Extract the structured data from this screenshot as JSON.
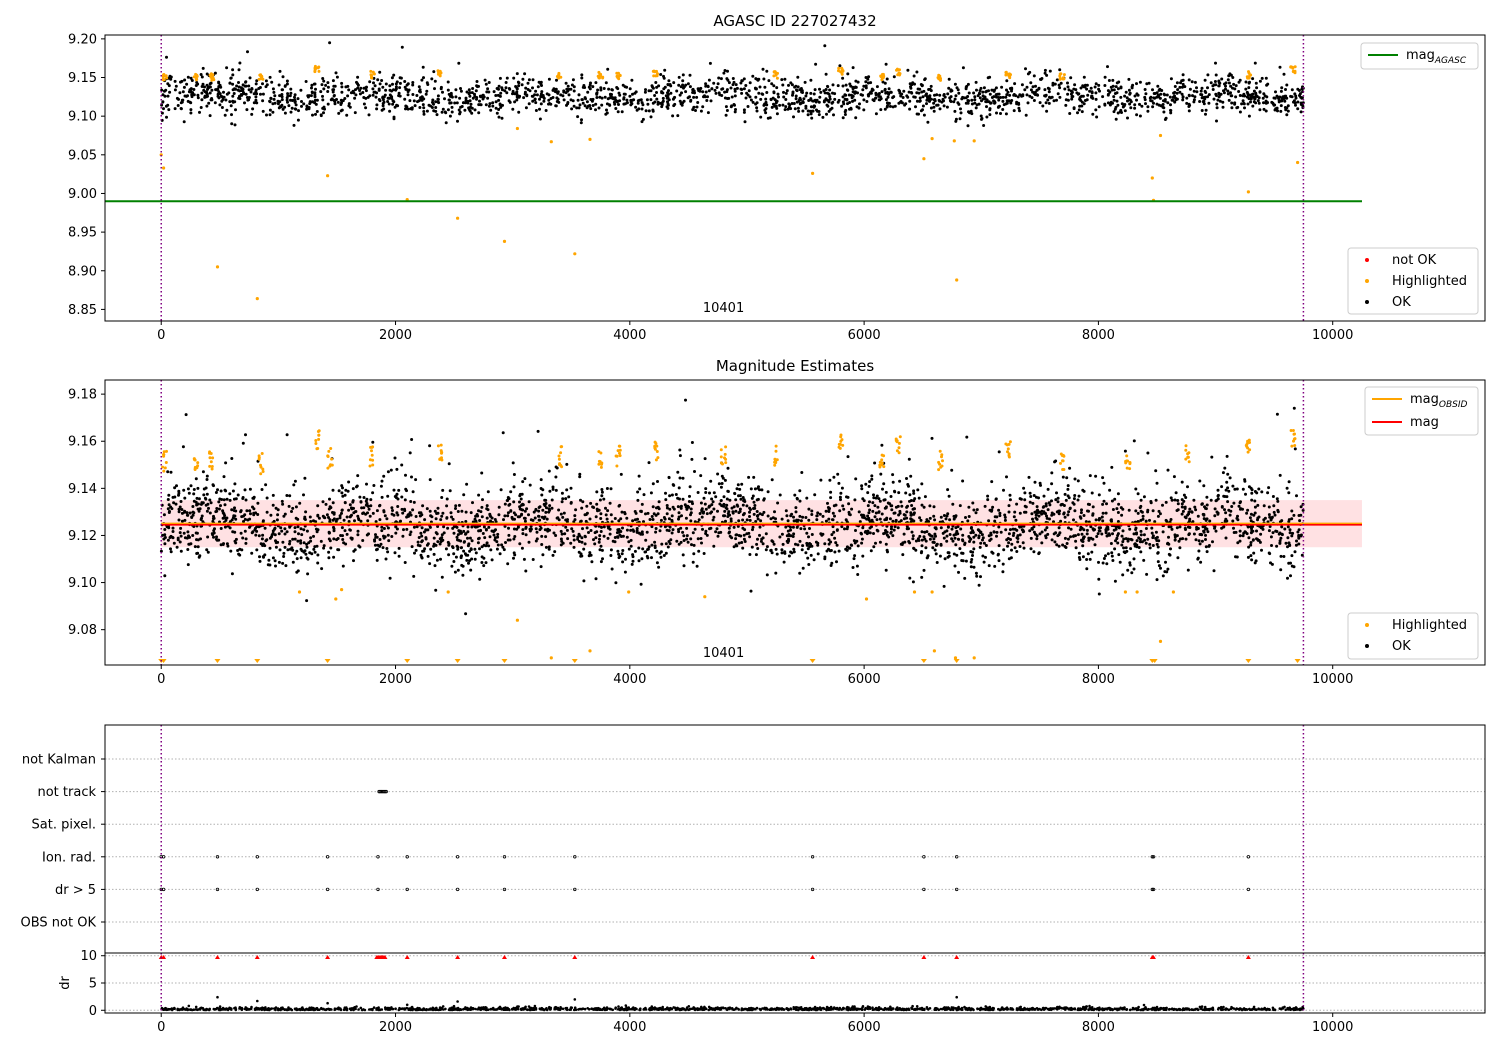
{
  "chart_data": [
    {
      "type": "scatter",
      "title": "AGASC ID 227027432",
      "xlim": [
        -480,
        11300
      ],
      "ylim": [
        8.835,
        9.205
      ],
      "xticks": [
        0,
        2000,
        4000,
        6000,
        8000,
        10000
      ],
      "xtick_labels": [
        "0",
        "2000",
        "4000",
        "6000",
        "8000",
        "10000"
      ],
      "yticks": [
        8.85,
        8.9,
        8.95,
        9.0,
        9.05,
        9.1,
        9.15,
        9.2
      ],
      "ytick_labels": [
        "8.85",
        "8.90",
        "8.95",
        "9.00",
        "9.05",
        "9.10",
        "9.15",
        "9.20"
      ],
      "annotation": "10401",
      "annotation_x": 4800,
      "obsid_bounds": [
        0,
        9750
      ],
      "ok_band": {
        "center": 9.125,
        "spread": 0.012,
        "count": 2200,
        "x": [
          0,
          9750
        ]
      },
      "lines": [
        {
          "name": "mag_AGASC",
          "label_main": "mag",
          "label_sub": "AGASC",
          "y": 8.99,
          "x": [
            -480,
            10250
          ],
          "color": "#008000"
        }
      ],
      "highlighted_points": [
        {
          "x": 0,
          "y": 9.05
        },
        {
          "x": 20,
          "y": 9.033
        },
        {
          "x": 480,
          "y": 8.905
        },
        {
          "x": 820,
          "y": 8.864
        },
        {
          "x": 1420,
          "y": 9.023
        },
        {
          "x": 2100,
          "y": 8.992
        },
        {
          "x": 2530,
          "y": 8.968
        },
        {
          "x": 2930,
          "y": 8.938
        },
        {
          "x": 3040,
          "y": 9.084
        },
        {
          "x": 3330,
          "y": 9.067
        },
        {
          "x": 3530,
          "y": 8.922
        },
        {
          "x": 3660,
          "y": 9.07
        },
        {
          "x": 5560,
          "y": 9.026
        },
        {
          "x": 6510,
          "y": 9.045
        },
        {
          "x": 6580,
          "y": 9.071
        },
        {
          "x": 6770,
          "y": 9.068
        },
        {
          "x": 6790,
          "y": 8.888
        },
        {
          "x": 6940,
          "y": 9.068
        },
        {
          "x": 8460,
          "y": 9.02
        },
        {
          "x": 8470,
          "y": 8.991
        },
        {
          "x": 8530,
          "y": 9.075
        },
        {
          "x": 9280,
          "y": 9.002
        },
        {
          "x": 9700,
          "y": 9.04
        }
      ],
      "highlight_clusters": [
        {
          "x": 30,
          "y": 9.155
        },
        {
          "x": 300,
          "y": 9.154
        },
        {
          "x": 430,
          "y": 9.155
        },
        {
          "x": 850,
          "y": 9.154
        },
        {
          "x": 1330,
          "y": 9.165
        },
        {
          "x": 1800,
          "y": 9.158
        },
        {
          "x": 2380,
          "y": 9.16
        },
        {
          "x": 3400,
          "y": 9.156
        },
        {
          "x": 3750,
          "y": 9.157
        },
        {
          "x": 3900,
          "y": 9.157
        },
        {
          "x": 4220,
          "y": 9.16
        },
        {
          "x": 5250,
          "y": 9.158
        },
        {
          "x": 5800,
          "y": 9.163
        },
        {
          "x": 6150,
          "y": 9.155
        },
        {
          "x": 6290,
          "y": 9.162
        },
        {
          "x": 6650,
          "y": 9.155
        },
        {
          "x": 7230,
          "y": 9.158
        },
        {
          "x": 7690,
          "y": 9.156
        },
        {
          "x": 9280,
          "y": 9.158
        },
        {
          "x": 9660,
          "y": 9.165
        }
      ],
      "legend_lines_position": "upper right",
      "legend_points_position": "lower right",
      "legend_points": [
        {
          "label": "not OK",
          "color": "#ff0000"
        },
        {
          "label": "Highlighted",
          "color": "#ffa500"
        },
        {
          "label": "OK",
          "color": "#000000"
        }
      ]
    },
    {
      "type": "scatter",
      "title": "Magnitude Estimates",
      "xlim": [
        -480,
        11300
      ],
      "ylim": [
        9.065,
        9.186
      ],
      "xticks": [
        0,
        2000,
        4000,
        6000,
        8000,
        10000
      ],
      "xtick_labels": [
        "0",
        "2000",
        "4000",
        "6000",
        "8000",
        "10000"
      ],
      "yticks": [
        9.08,
        9.1,
        9.12,
        9.14,
        9.16,
        9.18
      ],
      "ytick_labels": [
        "9.08",
        "9.10",
        "9.12",
        "9.14",
        "9.16",
        "9.18"
      ],
      "annotation": "10401",
      "annotation_x": 4800,
      "obsid_bounds": [
        0,
        9750
      ],
      "ok_band": {
        "center": 9.124,
        "spread": 0.0085,
        "count": 3200,
        "x": [
          0,
          9750
        ]
      },
      "mag_band": {
        "low": 9.115,
        "high": 9.135,
        "x": [
          0,
          10250
        ],
        "color": "#ffc8cc"
      },
      "lines": [
        {
          "name": "mag_OBSID",
          "label_main": "mag",
          "label_sub": "OBSID",
          "y": 9.125,
          "x": [
            0,
            10250
          ],
          "color": "#ffa500"
        },
        {
          "name": "mag",
          "label_main": "mag",
          "label_sub": "",
          "y": 9.1245,
          "x": [
            0,
            10250
          ],
          "color": "#ff0000"
        }
      ],
      "highlighted_points": [
        {
          "x": 1180,
          "y": 9.096
        },
        {
          "x": 1540,
          "y": 9.097
        },
        {
          "x": 1490,
          "y": 9.093
        },
        {
          "x": 2450,
          "y": 9.096
        },
        {
          "x": 3040,
          "y": 9.084
        },
        {
          "x": 3330,
          "y": 9.068
        },
        {
          "x": 3660,
          "y": 9.071
        },
        {
          "x": 3990,
          "y": 9.096
        },
        {
          "x": 4640,
          "y": 9.094
        },
        {
          "x": 6020,
          "y": 9.093
        },
        {
          "x": 6430,
          "y": 9.096
        },
        {
          "x": 6580,
          "y": 9.096
        },
        {
          "x": 6600,
          "y": 9.071
        },
        {
          "x": 6780,
          "y": 9.068
        },
        {
          "x": 6940,
          "y": 9.068
        },
        {
          "x": 8230,
          "y": 9.096
        },
        {
          "x": 8330,
          "y": 9.096
        },
        {
          "x": 8530,
          "y": 9.075
        },
        {
          "x": 8640,
          "y": 9.096
        }
      ],
      "clipped_markers_x": [
        0,
        20,
        480,
        820,
        1420,
        2100,
        2530,
        2930,
        3530,
        5560,
        6510,
        6790,
        8460,
        8480,
        9280,
        9700
      ],
      "highlight_clusters": [
        {
          "x": 30,
          "y": 9.156
        },
        {
          "x": 300,
          "y": 9.155
        },
        {
          "x": 430,
          "y": 9.156
        },
        {
          "x": 850,
          "y": 9.155
        },
        {
          "x": 1330,
          "y": 9.165
        },
        {
          "x": 1440,
          "y": 9.157
        },
        {
          "x": 1800,
          "y": 9.158
        },
        {
          "x": 2380,
          "y": 9.16
        },
        {
          "x": 3400,
          "y": 9.158
        },
        {
          "x": 3750,
          "y": 9.157
        },
        {
          "x": 3900,
          "y": 9.158
        },
        {
          "x": 4220,
          "y": 9.16
        },
        {
          "x": 4800,
          "y": 9.158
        },
        {
          "x": 5250,
          "y": 9.158
        },
        {
          "x": 5800,
          "y": 9.163
        },
        {
          "x": 6150,
          "y": 9.155
        },
        {
          "x": 6290,
          "y": 9.163
        },
        {
          "x": 6650,
          "y": 9.156
        },
        {
          "x": 7230,
          "y": 9.16
        },
        {
          "x": 7690,
          "y": 9.156
        },
        {
          "x": 8250,
          "y": 9.157
        },
        {
          "x": 8760,
          "y": 9.159
        },
        {
          "x": 9280,
          "y": 9.162
        },
        {
          "x": 9660,
          "y": 9.165
        }
      ],
      "legend_lines_position": "upper right",
      "legend_points_position": "lower right",
      "legend_points": [
        {
          "label": "Highlighted",
          "color": "#ffa500"
        },
        {
          "label": "OK",
          "color": "#000000"
        }
      ]
    },
    {
      "type": "scatter",
      "title": "",
      "xlim": [
        -480,
        11300
      ],
      "categories": [
        "not Kalman",
        "not track",
        "Sat. pixel.",
        "Ion. rad.",
        "dr > 5",
        "OBS not OK"
      ],
      "flags": {
        "not track": [
          1860,
          1870,
          1880,
          1890,
          1900,
          1910,
          1920
        ],
        "Ion. rad.": [
          0,
          20,
          480,
          820,
          1420,
          1850,
          2100,
          2530,
          2930,
          3530,
          5560,
          6510,
          6790,
          8460,
          8470,
          9280
        ],
        "dr > 5": [
          0,
          20,
          480,
          820,
          1420,
          1850,
          2100,
          2530,
          2930,
          3530,
          5560,
          6510,
          6790,
          8460,
          8470,
          9280
        ]
      },
      "obsid_bounds": [
        0,
        9750
      ]
    },
    {
      "type": "scatter",
      "title": "",
      "xlim": [
        -480,
        11300
      ],
      "ylim": [
        -0.5,
        10.5
      ],
      "ylabel": "dr",
      "xticks": [
        0,
        2000,
        4000,
        6000,
        8000,
        10000
      ],
      "xtick_labels": [
        "0",
        "2000",
        "4000",
        "6000",
        "8000",
        "10000"
      ],
      "yticks": [
        0,
        5,
        10
      ],
      "ytick_labels": [
        "0",
        "5",
        "10"
      ],
      "clipped_markers_x": [
        0,
        20,
        480,
        820,
        1420,
        1840,
        1850,
        1860,
        1870,
        1880,
        1890,
        1900,
        1910,
        2100,
        2530,
        2930,
        3530,
        5560,
        6510,
        6790,
        8460,
        8470,
        9280
      ],
      "dr_outliers": [
        {
          "x": 480,
          "y": 2.4
        },
        {
          "x": 820,
          "y": 1.7
        },
        {
          "x": 1420,
          "y": 1.3
        },
        {
          "x": 2100,
          "y": 1.0
        },
        {
          "x": 2530,
          "y": 1.6
        },
        {
          "x": 3530,
          "y": 2.0
        },
        {
          "x": 6790,
          "y": 2.4
        }
      ],
      "obsid_bounds": [
        0,
        9750
      ]
    }
  ],
  "colors": {
    "ok": "#000000",
    "highlighted": "#ffa500",
    "not_ok": "#ff0000",
    "obsid_boundary": "#800080",
    "flag_grid": "#b0b0b0"
  }
}
